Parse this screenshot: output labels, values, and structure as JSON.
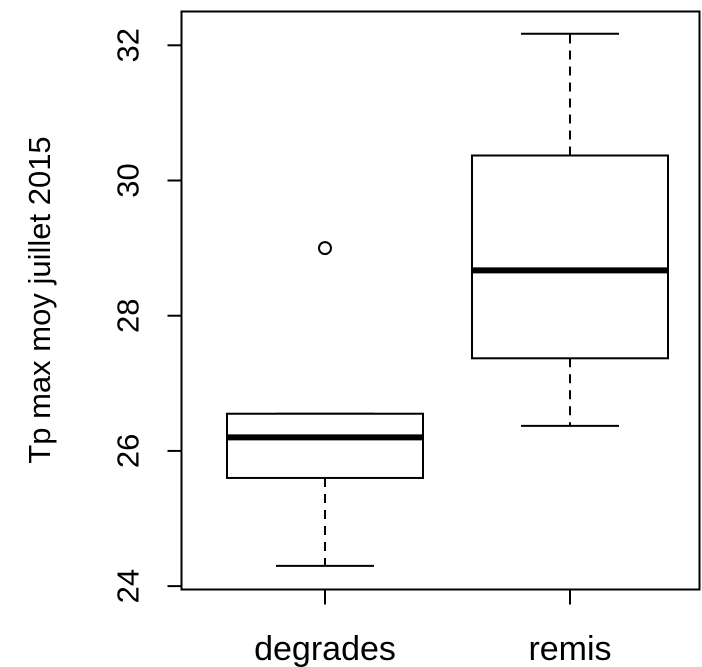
{
  "chart_data": {
    "type": "boxplot",
    "title": "",
    "xlabel": "",
    "ylabel": "Tp max moy juillet 2015",
    "ylim": [
      23.95,
      32.5
    ],
    "yticks": [
      24,
      26,
      28,
      30,
      32
    ],
    "grid": false,
    "legend": "none",
    "categories": [
      "degrades",
      "remis"
    ],
    "boxes": [
      {
        "category": "degrades",
        "whisker_low": 24.3,
        "q1": 25.6,
        "median": 26.2,
        "q3": 26.55,
        "whisker_high": 26.55,
        "outliers": [
          29.0
        ]
      },
      {
        "category": "remis",
        "whisker_low": 26.37,
        "q1": 27.37,
        "median": 28.67,
        "q3": 30.37,
        "whisker_high": 32.17,
        "outliers": []
      }
    ]
  },
  "colors": {
    "stroke": "#000000",
    "box_fill": "#ffffff",
    "background": "#ffffff"
  }
}
